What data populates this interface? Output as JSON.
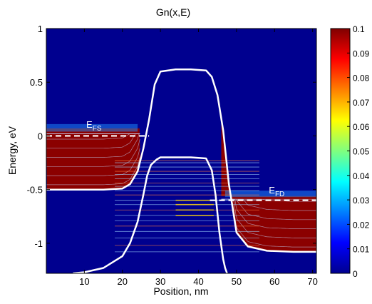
{
  "chart_data": {
    "type": "heatmap",
    "title": "Gn(x,E)",
    "xlabel": "Position, nm",
    "ylabel": "Energy, eV",
    "xlim": [
      0,
      71
    ],
    "ylim": [
      -1.28,
      1.0
    ],
    "xticks": [
      10,
      20,
      30,
      40,
      50,
      60,
      70
    ],
    "yticks": [
      1,
      0.5,
      0,
      -0.5,
      -1
    ],
    "ytick_labels": [
      "1",
      "0.5",
      "0",
      "-0.5",
      "-1"
    ],
    "colorbar": {
      "colormap": "jet",
      "range": [
        0,
        0.1
      ],
      "ticks": [
        0.1,
        0.09,
        0.08,
        0.07,
        0.06,
        0.05,
        0.04,
        0.03,
        0.02,
        0.01,
        0
      ],
      "tick_labels": [
        "0.1",
        "0.09",
        "0.08",
        "0.07",
        "0.06",
        "0.05",
        "0.04",
        "0.03",
        "0.02",
        "0.01",
        "0"
      ]
    },
    "annotations": [
      {
        "main": "E",
        "sub": "FS",
        "x": 10.5,
        "y": 0.075
      },
      {
        "main": "E",
        "sub": "FD",
        "x": 58.5,
        "y": -0.535
      }
    ],
    "fermi_levels": [
      {
        "name": "E_FS",
        "x": [
          0,
          27
        ],
        "y": 0.0
      },
      {
        "name": "E_FD",
        "x": [
          43,
          71
        ],
        "y": -0.6
      }
    ],
    "band_edges": [
      {
        "name": "conduction_band",
        "x": [
          0,
          15,
          20,
          22,
          24,
          25.5,
          27,
          28.5,
          30,
          34,
          38,
          42,
          43.5,
          45,
          46.5,
          48,
          50,
          53,
          58,
          65,
          71
        ],
        "y": [
          -0.5,
          -0.5,
          -0.49,
          -0.45,
          -0.33,
          -0.12,
          0.15,
          0.48,
          0.6,
          0.62,
          0.62,
          0.61,
          0.55,
          0.38,
          0.05,
          -0.45,
          -0.9,
          -1.03,
          -1.07,
          -1.08,
          -1.08
        ]
      },
      {
        "name": "valence_band",
        "x": [
          7,
          10,
          15,
          20,
          22,
          24,
          25.5,
          26.5,
          27.5,
          29,
          30,
          34,
          38,
          42,
          43.5,
          44.5,
          45.5,
          46.5,
          47,
          47.5
        ],
        "y": [
          -1.28,
          -1.27,
          -1.23,
          -1.12,
          -1.0,
          -0.8,
          -0.55,
          -0.37,
          -0.27,
          -0.22,
          -0.2,
          -0.2,
          -0.2,
          -0.21,
          -0.32,
          -0.55,
          -0.9,
          -1.15,
          -1.23,
          -1.28
        ]
      }
    ],
    "quasi_bound_states_eV": [
      -0.23,
      -0.25,
      -0.29,
      -0.33,
      -0.36,
      -0.4,
      -0.44,
      -0.47,
      -0.51,
      -0.55,
      -0.6,
      -0.64,
      -0.69,
      -0.74,
      -0.79,
      -0.84,
      -0.89,
      -0.95,
      -1.02,
      -1.08
    ],
    "colors": {
      "background": "#00008f",
      "band_line": "#ffffff",
      "occupied": "#8b0000"
    }
  }
}
